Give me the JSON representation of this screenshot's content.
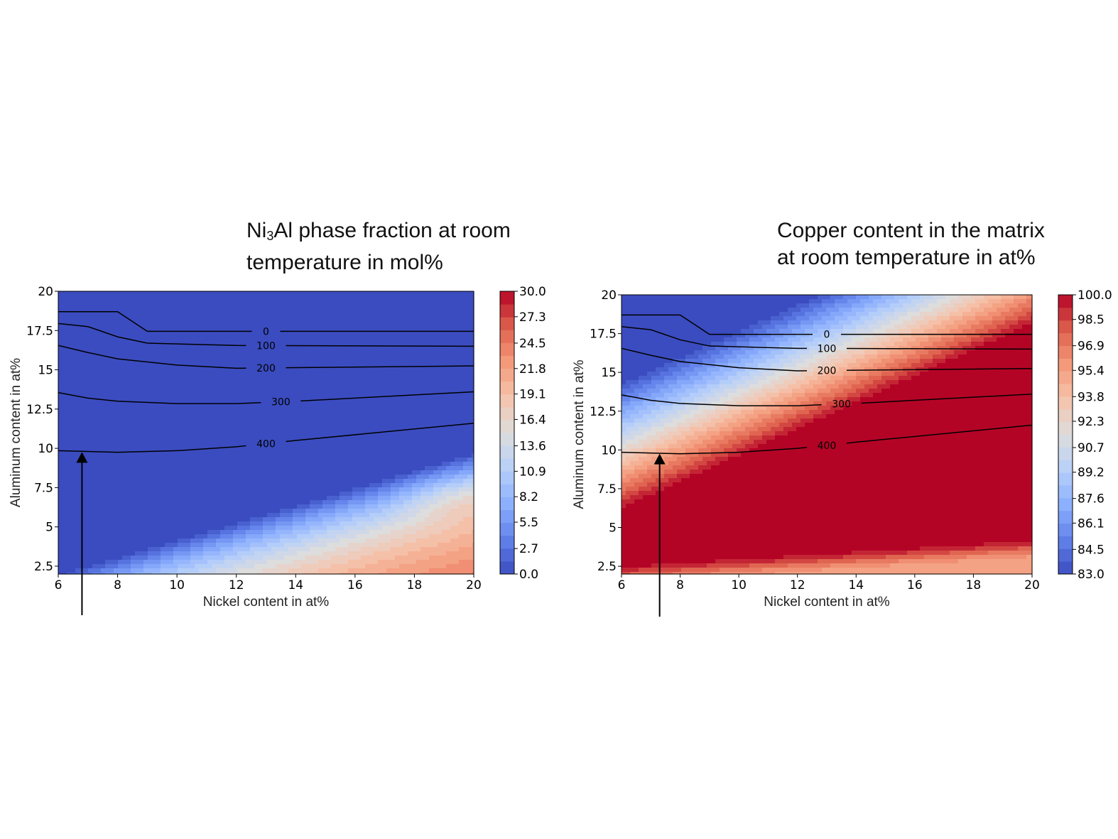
{
  "chart_data": [
    {
      "type": "heatmap",
      "title_parts": [
        "Ni",
        "3",
        "Al phase fraction at room",
        "temperature in mol%"
      ],
      "xlabel": "Nickel content in at%",
      "ylabel": "Aluminum content in at%",
      "xlim": [
        6,
        20
      ],
      "ylim": [
        2,
        20
      ],
      "xticks": [
        "6",
        "8",
        "10",
        "12",
        "14",
        "16",
        "18",
        "20"
      ],
      "yticks": [
        "2.5",
        "5",
        "7.5",
        "10",
        "12.5",
        "15",
        "17.5",
        "20"
      ],
      "colorbar": {
        "colormap": "coolwarm",
        "min": 0.0,
        "max": 30.0,
        "ticks": [
          "0.0",
          "2.7",
          "5.5",
          "8.2",
          "10.9",
          "13.6",
          "16.4",
          "19.1",
          "21.8",
          "24.5",
          "27.3",
          "30.0"
        ]
      },
      "field_description": "phase fraction is ~0 in upper-left region and rises toward the lower-right, peaking near Ni=19-20, Al=6-7",
      "contours": [
        {
          "label": "0",
          "points": [
            [
              6,
              18.7
            ],
            [
              8,
              18.7
            ],
            [
              9,
              17.45
            ],
            [
              20,
              17.45
            ]
          ]
        },
        {
          "label": "100",
          "points": [
            [
              6,
              17.95
            ],
            [
              7,
              17.75
            ],
            [
              8,
              17.1
            ],
            [
              9,
              16.7
            ],
            [
              12,
              16.55
            ],
            [
              20,
              16.5
            ]
          ]
        },
        {
          "label": "200",
          "points": [
            [
              6,
              16.55
            ],
            [
              7,
              16.1
            ],
            [
              8,
              15.7
            ],
            [
              10,
              15.3
            ],
            [
              12,
              15.1
            ],
            [
              20,
              15.25
            ]
          ]
        },
        {
          "label": "300",
          "points": [
            [
              6,
              13.55
            ],
            [
              7,
              13.2
            ],
            [
              8,
              13.0
            ],
            [
              10,
              12.85
            ],
            [
              12,
              12.85
            ],
            [
              14,
              13.0
            ],
            [
              20,
              13.6
            ]
          ]
        },
        {
          "label": "400",
          "points": [
            [
              6,
              9.85
            ],
            [
              8,
              9.75
            ],
            [
              10,
              9.85
            ],
            [
              12,
              10.1
            ],
            [
              14,
              10.5
            ],
            [
              20,
              11.6
            ]
          ]
        }
      ],
      "arrow": {
        "x_start": 6.8,
        "x_end": 6.8,
        "y_tip": 9.85
      }
    },
    {
      "type": "heatmap",
      "title_parts": [
        "Copper content in the matrix",
        "at room temperature in at%"
      ],
      "xlabel": "Nickel content in at%",
      "ylabel": "Aluminum content in at%",
      "xlim": [
        6,
        20
      ],
      "ylim": [
        2,
        20
      ],
      "xticks": [
        "6",
        "8",
        "10",
        "12",
        "14",
        "16",
        "18",
        "20"
      ],
      "yticks": [
        "2.5",
        "5",
        "7.5",
        "10",
        "12.5",
        "15",
        "17.5",
        "20"
      ],
      "colorbar": {
        "colormap": "coolwarm",
        "min": 83.0,
        "max": 100.0,
        "ticks": [
          "83.0",
          "84.5",
          "86.1",
          "87.6",
          "89.2",
          "90.7",
          "92.3",
          "93.8",
          "95.4",
          "96.9",
          "98.5",
          "100.0"
        ]
      },
      "field_description": "copper content is ~100 in a diagonal band from lower-left to upper-right, lower (~86) in the upper-left corner, ~95 in the bottom strip",
      "contours": [
        {
          "label": "0",
          "points": [
            [
              6,
              18.7
            ],
            [
              8,
              18.7
            ],
            [
              9,
              17.45
            ],
            [
              20,
              17.45
            ]
          ]
        },
        {
          "label": "100",
          "points": [
            [
              6,
              17.95
            ],
            [
              7,
              17.75
            ],
            [
              8,
              17.1
            ],
            [
              9,
              16.7
            ],
            [
              12,
              16.55
            ],
            [
              20,
              16.5
            ]
          ]
        },
        {
          "label": "200",
          "points": [
            [
              6,
              16.55
            ],
            [
              7,
              16.1
            ],
            [
              8,
              15.7
            ],
            [
              10,
              15.3
            ],
            [
              12,
              15.1
            ],
            [
              20,
              15.25
            ]
          ]
        },
        {
          "label": "300",
          "points": [
            [
              6,
              13.55
            ],
            [
              7,
              13.2
            ],
            [
              8,
              13.0
            ],
            [
              10,
              12.85
            ],
            [
              12,
              12.85
            ],
            [
              14,
              13.0
            ],
            [
              20,
              13.6
            ]
          ]
        },
        {
          "label": "400",
          "points": [
            [
              6,
              9.85
            ],
            [
              8,
              9.75
            ],
            [
              10,
              9.85
            ],
            [
              12,
              10.1
            ],
            [
              14,
              10.5
            ],
            [
              20,
              11.6
            ]
          ]
        }
      ],
      "arrow": {
        "x_start": 7.3,
        "x_end": 7.3,
        "y_tip": 9.85
      }
    }
  ]
}
